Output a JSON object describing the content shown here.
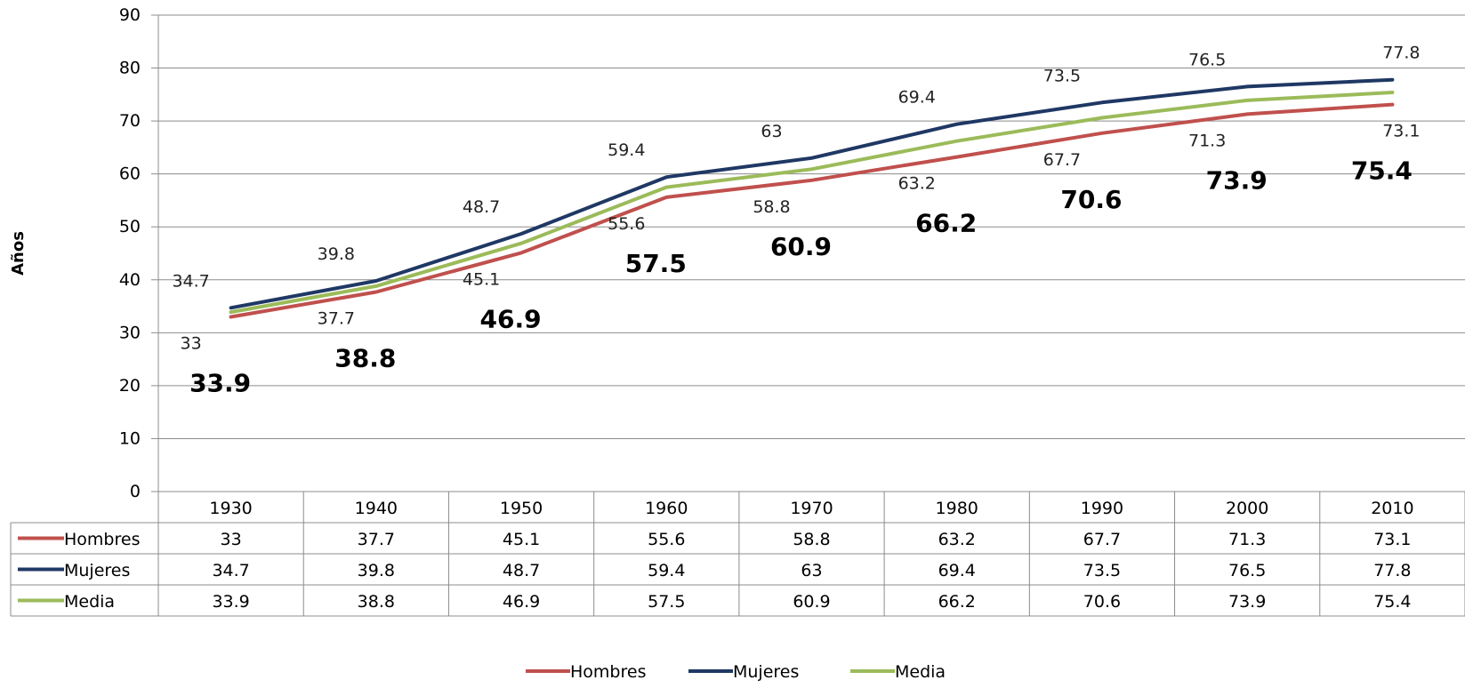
{
  "chart_data": {
    "type": "line",
    "title": "",
    "xlabel": "",
    "ylabel": "Años",
    "ylim": [
      0,
      90
    ],
    "yticks": [
      0,
      10,
      20,
      30,
      40,
      50,
      60,
      70,
      80,
      90
    ],
    "categories": [
      "1930",
      "1940",
      "1950",
      "1960",
      "1970",
      "1980",
      "1990",
      "2000",
      "2010"
    ],
    "grid": true,
    "legend_position": "bottom",
    "data_table": true,
    "series": [
      {
        "name": "Hombres",
        "color": "#c0504d",
        "values": [
          33,
          37.7,
          45.1,
          55.6,
          58.8,
          63.2,
          67.7,
          71.3,
          73.1
        ],
        "labels": [
          "33",
          "37.7",
          "45.1",
          "55.6",
          "58.8",
          "63.2",
          "67.7",
          "71.3",
          "73.1"
        ]
      },
      {
        "name": "Mujeres",
        "color": "#1f3864",
        "values": [
          34.7,
          39.8,
          48.7,
          59.4,
          63,
          69.4,
          73.5,
          76.5,
          77.8
        ],
        "labels": [
          "34.7",
          "39.8",
          "48.7",
          "59.4",
          "63",
          "69.4",
          "73.5",
          "76.5",
          "77.8"
        ]
      },
      {
        "name": "Media",
        "color": "#9bbb59",
        "values": [
          33.9,
          38.8,
          46.9,
          57.5,
          60.9,
          66.2,
          70.6,
          73.9,
          75.4
        ],
        "labels": [
          "33.9",
          "38.8",
          "46.9",
          "57.5",
          "60.9",
          "66.2",
          "70.6",
          "73.9",
          "75.4"
        ]
      }
    ]
  }
}
